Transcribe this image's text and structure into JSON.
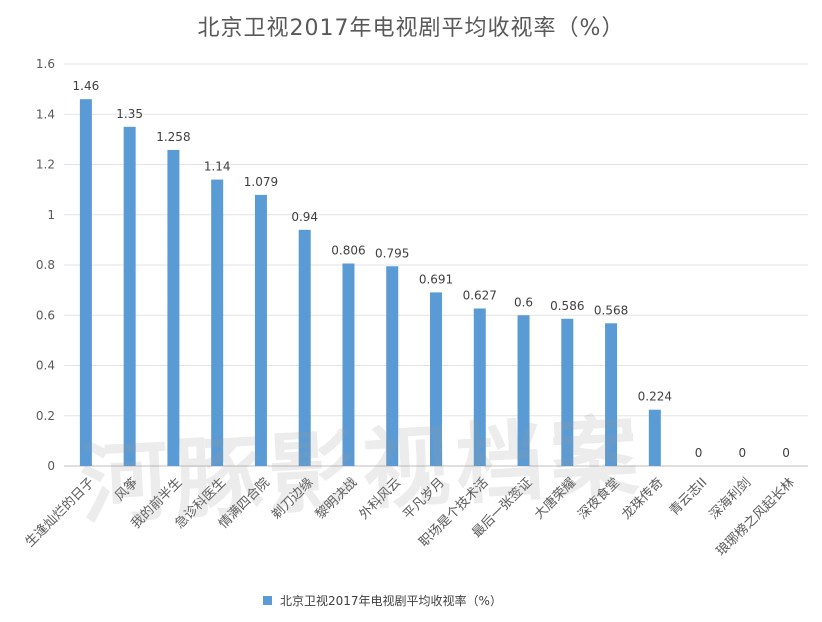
{
  "chart_data": {
    "type": "bar",
    "title": "北京卫视2017年电视剧平均收视率（%）",
    "categories": [
      "生逢灿烂的日子",
      "风筝",
      "我的前半生",
      "急诊科医生",
      "情满四合院",
      "剃刀边缘",
      "黎明决战",
      "外科风云",
      "平凡岁月",
      "职场是个技术活",
      "最后一张签证",
      "大唐荣耀",
      "深夜食堂",
      "龙珠传奇",
      "青云志II",
      "深海利剑",
      "琅琊榜之风起长林"
    ],
    "series": [
      {
        "name": "北京卫视2017年电视剧平均收视率（%）",
        "values": [
          1.46,
          1.35,
          1.258,
          1.14,
          1.079,
          0.94,
          0.806,
          0.795,
          0.691,
          0.627,
          0.6,
          0.586,
          0.568,
          0.224,
          0,
          0,
          0
        ]
      }
    ],
    "data_labels": [
      "1.46",
      "1.35",
      "1.258",
      "1.14",
      "1.079",
      "0.94",
      "0.806",
      "0.795",
      "0.691",
      "0.627",
      "0.6",
      "0.586",
      "0.568",
      "0.224",
      "0",
      "0",
      "0"
    ],
    "y_ticks": [
      "0",
      "0.2",
      "0.4",
      "0.6",
      "0.8",
      "1",
      "1.2",
      "1.4",
      "1.6"
    ],
    "ylim": [
      0,
      1.6
    ],
    "grid": true,
    "legend_position": "bottom",
    "bar_color": "#5b9bd5",
    "xlabel": "",
    "ylabel": ""
  },
  "watermark": "河豚影视档案"
}
